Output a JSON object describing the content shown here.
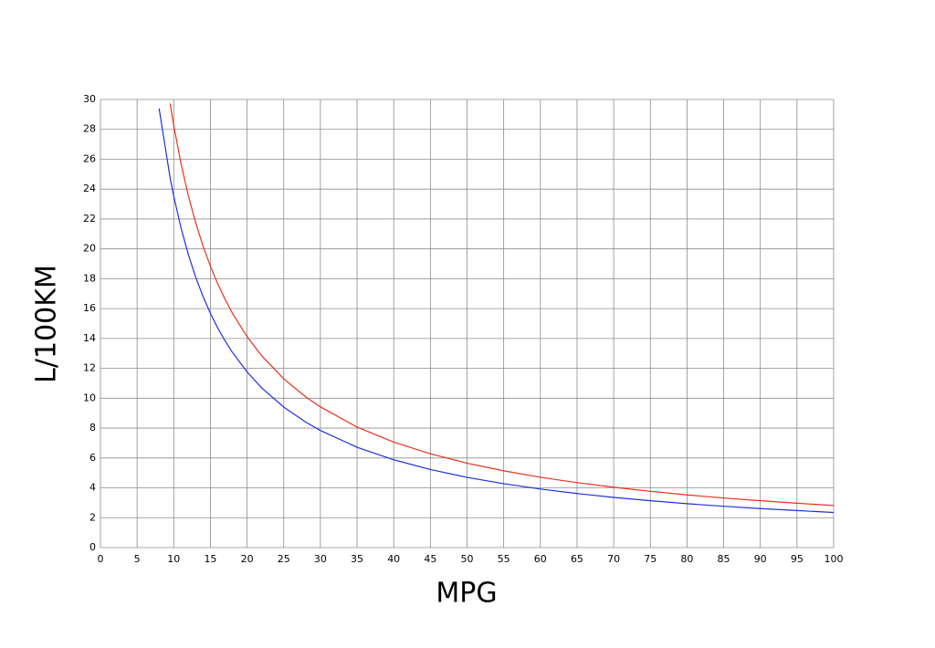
{
  "chart_data": {
    "type": "line",
    "x_label": "MPG",
    "y_label": "L/100KM",
    "x": [
      8,
      9.5,
      10,
      11,
      12,
      13,
      14,
      15,
      16,
      17,
      18,
      20,
      22,
      25,
      28,
      30,
      35,
      40,
      45,
      50,
      55,
      60,
      65,
      70,
      75,
      80,
      85,
      90,
      95,
      100
    ],
    "series": [
      {
        "color": "#1f2fe0",
        "values": [
          29.4,
          24.76,
          23.52,
          21.38,
          19.6,
          18.09,
          16.8,
          15.68,
          14.7,
          13.84,
          13.07,
          11.76,
          10.69,
          9.41,
          8.4,
          7.84,
          6.72,
          5.88,
          5.23,
          4.7,
          4.28,
          3.92,
          3.62,
          3.36,
          3.14,
          2.94,
          2.77,
          2.61,
          2.48,
          2.35
        ]
      },
      {
        "color": "#e8311a",
        "values": [
          null,
          29.73,
          28.25,
          25.68,
          23.54,
          21.73,
          20.18,
          18.83,
          17.66,
          16.62,
          15.69,
          14.12,
          12.84,
          11.3,
          10.09,
          9.42,
          8.07,
          7.06,
          6.28,
          5.65,
          5.14,
          4.71,
          4.35,
          4.04,
          3.77,
          3.53,
          3.32,
          3.14,
          2.97,
          2.82
        ]
      }
    ],
    "xlim": [
      0,
      100
    ],
    "xticks": [
      0,
      5,
      10,
      15,
      20,
      25,
      30,
      35,
      40,
      45,
      50,
      55,
      60,
      65,
      70,
      75,
      80,
      85,
      90,
      95,
      100
    ],
    "ylim": [
      0,
      30
    ],
    "yticks": [
      0,
      2,
      4,
      6,
      8,
      10,
      12,
      14,
      16,
      18,
      20,
      22,
      24,
      26,
      28,
      30
    ],
    "grid": true
  }
}
